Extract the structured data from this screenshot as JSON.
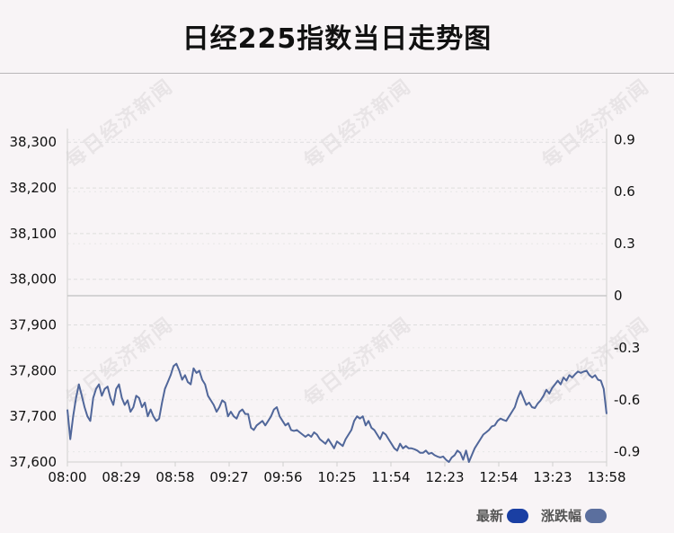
{
  "title": "日经225指数当日走势图",
  "watermark": "每日经济新闻",
  "legend": [
    {
      "name": "最新",
      "color": "#1a3fa3"
    },
    {
      "name": "涨跌幅",
      "color": "#5b6f9e"
    }
  ],
  "colors": {
    "line": "#51679a",
    "zero_line": "#c8c8c8",
    "grid": "#dddddd",
    "axis_text": "#111111"
  },
  "chart_data": {
    "type": "line",
    "x_ticks": [
      "08:00",
      "08:29",
      "08:58",
      "09:27",
      "09:56",
      "10:25",
      "11:54",
      "12:23",
      "12:54",
      "13:23",
      "13:58"
    ],
    "y_left_ticks": [
      "38,300",
      "38,200",
      "38,100",
      "38,000",
      "37,900",
      "37,800",
      "37,700",
      "37,600"
    ],
    "y_left_values": [
      38300,
      38200,
      38100,
      38000,
      37900,
      37800,
      37700,
      37600
    ],
    "y_right_ticks": [
      "0.9",
      "0.6",
      "0.3",
      "0",
      "-0.3",
      "-0.6",
      "-0.9"
    ],
    "y_right_values": [
      0.9,
      0.6,
      0.3,
      0,
      -0.3,
      -0.6,
      -0.9
    ],
    "ylim_left": [
      37600,
      38300
    ],
    "ylim_right": [
      -0.9,
      0.9
    ],
    "baseline": 37964,
    "series": [
      {
        "values": [
          37715,
          37650,
          37700,
          37740,
          37770,
          37745,
          37720,
          37700,
          37690,
          37740,
          37760,
          37770,
          37745,
          37760,
          37765,
          37740,
          37725,
          37760,
          37770,
          37740,
          37725,
          37735,
          37710,
          37720,
          37745,
          37740,
          37720,
          37730,
          37700,
          37715,
          37700,
          37690,
          37695,
          37730,
          37760,
          37775,
          37790,
          37810,
          37815,
          37800,
          37780,
          37790,
          37775,
          37770,
          37805,
          37795,
          37800,
          37780,
          37770,
          37745,
          37735,
          37725,
          37710,
          37720,
          37735,
          37730,
          37700,
          37710,
          37700,
          37695,
          37710,
          37715,
          37705,
          37705,
          37675,
          37670,
          37680,
          37685,
          37690,
          37680,
          37690,
          37700,
          37715,
          37720,
          37700,
          37690,
          37680,
          37685,
          37670,
          37668,
          37670,
          37665,
          37660,
          37655,
          37660,
          37655,
          37665,
          37660,
          37650,
          37645,
          37640,
          37650,
          37640,
          37630,
          37645,
          37640,
          37635,
          37650,
          37660,
          37670,
          37690,
          37700,
          37695,
          37700,
          37680,
          37690,
          37675,
          37670,
          37660,
          37650,
          37665,
          37660,
          37650,
          37640,
          37630,
          37625,
          37640,
          37630,
          37635,
          37630,
          37630,
          37628,
          37625,
          37620,
          37620,
          37625,
          37618,
          37620,
          37615,
          37612,
          37610,
          37612,
          37605,
          37600,
          37610,
          37615,
          37625,
          37620,
          37605,
          37625,
          37600,
          37615,
          37630,
          37640,
          37650,
          37660,
          37665,
          37670,
          37678,
          37680,
          37690,
          37695,
          37692,
          37690,
          37700,
          37710,
          37720,
          37740,
          37755,
          37740,
          37725,
          37730,
          37720,
          37718,
          37728,
          37735,
          37745,
          37758,
          37750,
          37762,
          37770,
          37778,
          37770,
          37785,
          37778,
          37790,
          37785,
          37792,
          37798,
          37795,
          37798,
          37800,
          37790,
          37785,
          37790,
          37780,
          37778,
          37760,
          37705
        ]
      }
    ]
  }
}
